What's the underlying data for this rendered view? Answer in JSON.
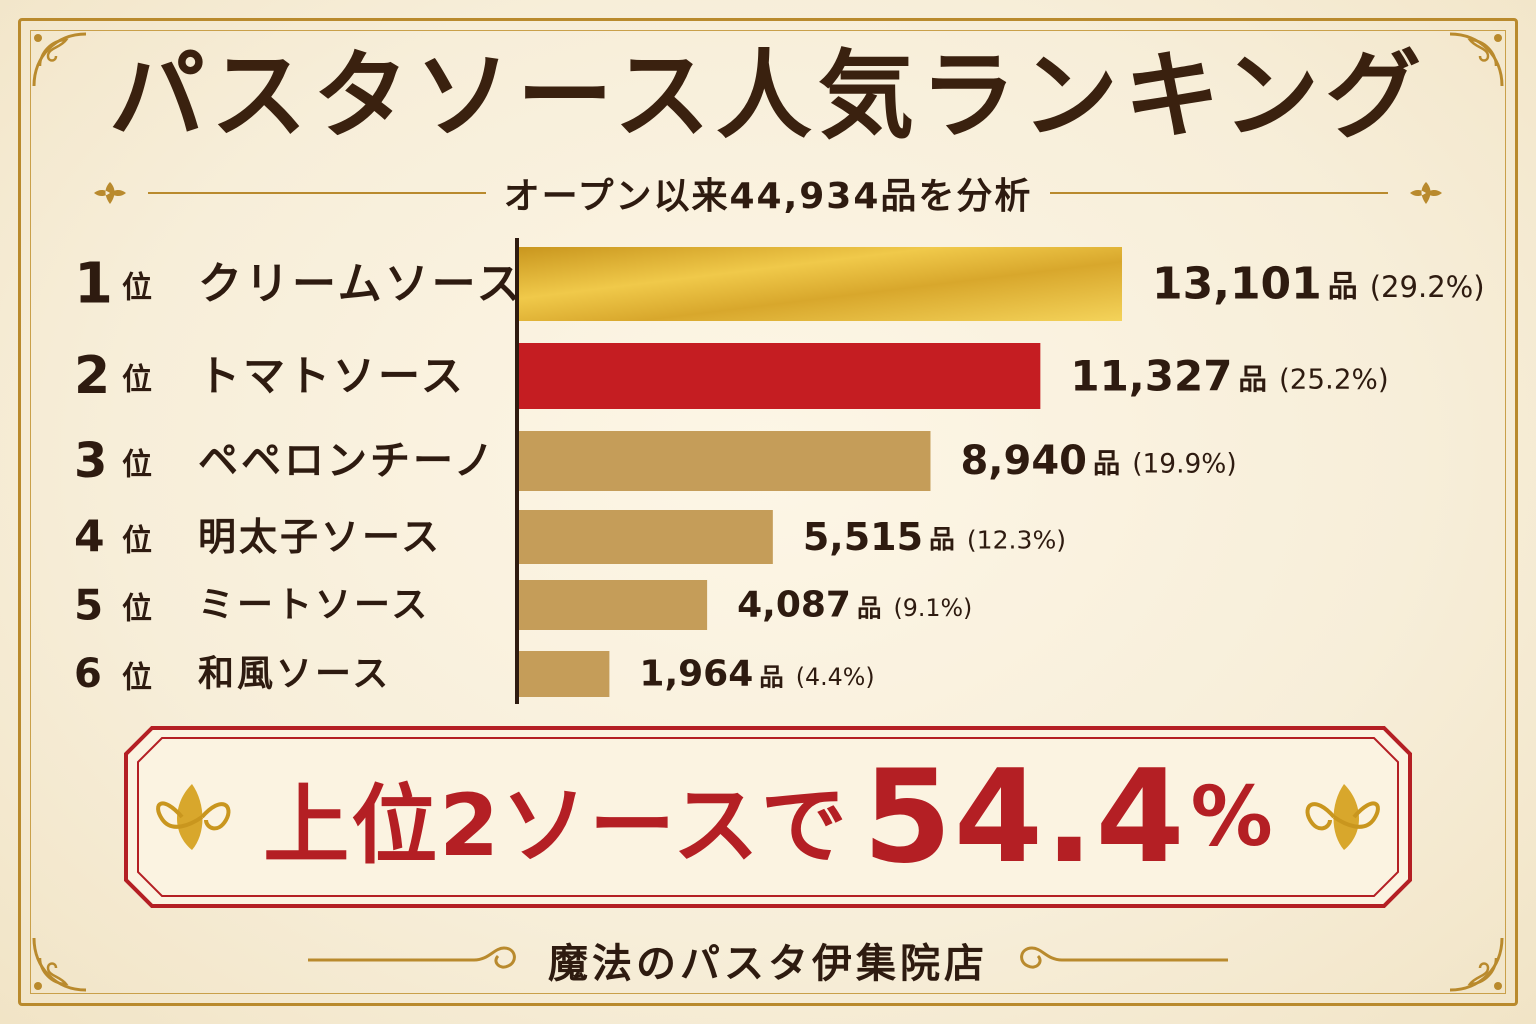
{
  "title": "パスタソース人気ランキング",
  "subtitle": "オープン以来44,934品を分析",
  "colors": {
    "gold": "#e0b52f",
    "red": "#c51d22",
    "tan": "#c59d59",
    "text": "#2e1b10",
    "accent": "#b41f24",
    "frame": "#b98a2d"
  },
  "chart_data": {
    "type": "bar",
    "orientation": "horizontal",
    "unit": "品",
    "categories": [
      "クリームソース",
      "トマトソース",
      "ペペロンチーノ",
      "明太子ソース",
      "ミートソース",
      "和風ソース"
    ],
    "ranks": [
      "1",
      "2",
      "3",
      "4",
      "5",
      "6"
    ],
    "rank_suffix": "位",
    "values": [
      13101,
      11327,
      8940,
      5515,
      4087,
      1964
    ],
    "value_labels": [
      "13,101",
      "11,327",
      "8,940",
      "5,515",
      "4,087",
      "1,964"
    ],
    "percent_labels": [
      "(29.2%)",
      "(25.2%)",
      "(19.9%)",
      "(12.3%)",
      "(9.1%)",
      "(4.4%)"
    ],
    "xlim": [
      0,
      13101
    ],
    "grid": false,
    "bar_colors": [
      "gold",
      "red",
      "tan",
      "tan",
      "tan",
      "tan"
    ]
  },
  "banner": {
    "prefix": "上位2ソースで",
    "value": "54.4",
    "suffix": "%"
  },
  "footer": "魔法のパスタ伊集院店"
}
